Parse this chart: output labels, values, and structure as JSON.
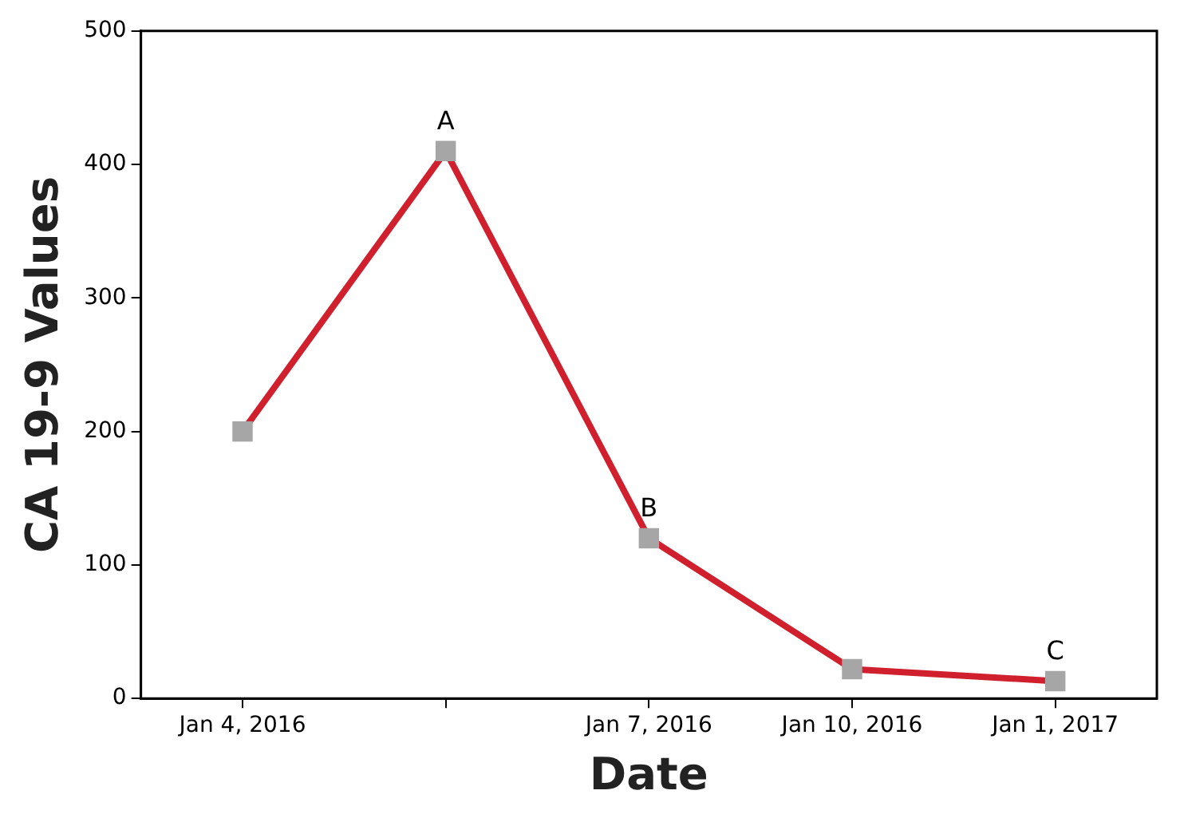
{
  "chart_data": {
    "type": "line",
    "xlabel": "Date",
    "ylabel": "CA 19-9 Values",
    "categories": [
      "Jan 4, 2016",
      null,
      "Jan 7, 2016",
      "Jan 10, 2016",
      "Jan 1, 2017"
    ],
    "series": [
      {
        "color": "#d0202e",
        "values": [
          200,
          410,
          120,
          22,
          13
        ]
      }
    ],
    "ylim": [
      0,
      500
    ],
    "yticks": [
      0,
      100,
      200,
      300,
      400,
      500
    ],
    "grid": false,
    "legend": false,
    "marker": "square",
    "line_style": "solid",
    "annotations": [
      {
        "text": "A",
        "y": 410
      },
      {
        "text": "B",
        "x": "Jan 7, 2016",
        "y": 120
      },
      {
        "text": "C",
        "x": "Jan 1, 2017",
        "y": 13
      }
    ]
  }
}
